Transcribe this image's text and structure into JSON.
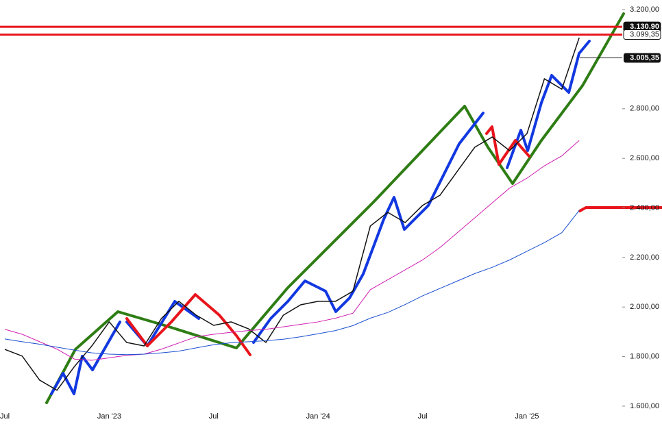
{
  "chart_data": {
    "type": "line",
    "categories": [
      "Jul",
      null,
      null,
      null,
      null,
      null,
      "Jan '23",
      null,
      null,
      null,
      null,
      null,
      "Jul",
      null,
      null,
      null,
      null,
      null,
      "Jan '24",
      null,
      null,
      null,
      null,
      null,
      "Jul",
      null,
      null,
      null,
      null,
      null,
      "Jan '25",
      null,
      null,
      null,
      null,
      null
    ],
    "series": [
      {
        "color": "#111111",
        "values": [
          1829,
          1802,
          1705,
          1664,
          1760,
          1843,
          1940,
          1857,
          1843,
          1954,
          2023,
          1967,
          1926,
          1940,
          1912,
          1857,
          1967,
          2009,
          2023,
          2023,
          2064,
          2327,
          2382,
          2341,
          2410,
          2451,
          2548,
          2645,
          2686,
          2631,
          2700,
          2921,
          2879,
          3087,
          null,
          null
        ]
      },
      {
        "color": "#d020b0",
        "values": [
          1910,
          1890,
          1860,
          1830,
          1790,
          1785,
          1795,
          1805,
          1810,
          1830,
          1855,
          1880,
          1890,
          1898,
          1905,
          1910,
          1920,
          1930,
          1940,
          1955,
          1975,
          2070,
          2110,
          2150,
          2190,
          2240,
          2300,
          2360,
          2420,
          2480,
          2520,
          2570,
          2610,
          2672,
          null,
          null
        ]
      },
      {
        "color": "#1a4fd0",
        "values": [
          1871,
          1860,
          1850,
          1838,
          1826,
          1815,
          1810,
          1808,
          1810,
          1815,
          1822,
          1835,
          1848,
          1856,
          1860,
          1864,
          1870,
          1880,
          1892,
          1905,
          1925,
          1955,
          1978,
          2010,
          2045,
          2075,
          2105,
          2135,
          2160,
          2190,
          2225,
          2260,
          2300,
          2390,
          null,
          null
        ]
      }
    ],
    "price_lines": [
      {
        "value": 3130.9,
        "label": "3.130,90",
        "color": "#e8141c"
      },
      {
        "value": 3099.35,
        "label": "3.099,35",
        "color": "#e8141c"
      }
    ],
    "price_tags": [
      {
        "value": 3005.35,
        "label": "3.005,35"
      }
    ],
    "ylim": [
      1586,
      3239
    ],
    "yticks": [
      {
        "value": 1600,
        "label": "1.600,00"
      },
      {
        "value": 1800,
        "label": "1.800,00"
      },
      {
        "value": 2000,
        "label": "2.000,00"
      },
      {
        "value": 2200,
        "label": "2.200,00"
      },
      {
        "value": 2400,
        "label": "2.400,00"
      },
      {
        "value": 2600,
        "label": "2.600,00"
      },
      {
        "value": 2800,
        "label": "2.800,00"
      },
      {
        "value": 3200,
        "label": "3.200,00"
      }
    ]
  }
}
